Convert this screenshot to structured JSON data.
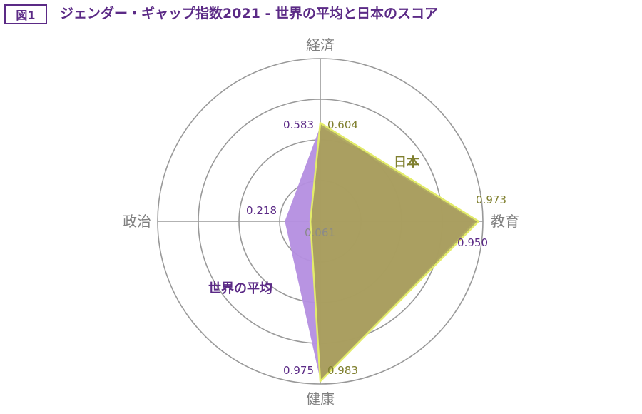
{
  "figure_badge": "図1",
  "chart_data": {
    "type": "radar",
    "title": "ジェンダー・ギャップ指数2021 - 世界の平均と日本のスコア",
    "axes": [
      "経済",
      "教育",
      "健康",
      "政治"
    ],
    "range": [
      0,
      1
    ],
    "rings": [
      0.25,
      0.5,
      0.75,
      1.0
    ],
    "series": [
      {
        "name": "世界の平均",
        "values": [
          0.583,
          0.95,
          0.975,
          0.218
        ],
        "labels": [
          "0.583",
          "0.950",
          "0.975",
          "0.218"
        ],
        "color": "#b48ee0",
        "text_color": "#5b2a86"
      },
      {
        "name": "日本",
        "values": [
          0.604,
          0.973,
          0.983,
          0.061
        ],
        "labels": [
          "0.604",
          "0.973",
          "0.983",
          "0.061"
        ],
        "color": "#a7a14e",
        "outline": "#e3ec6a",
        "text_color": "#7f7f2e"
      }
    ]
  }
}
